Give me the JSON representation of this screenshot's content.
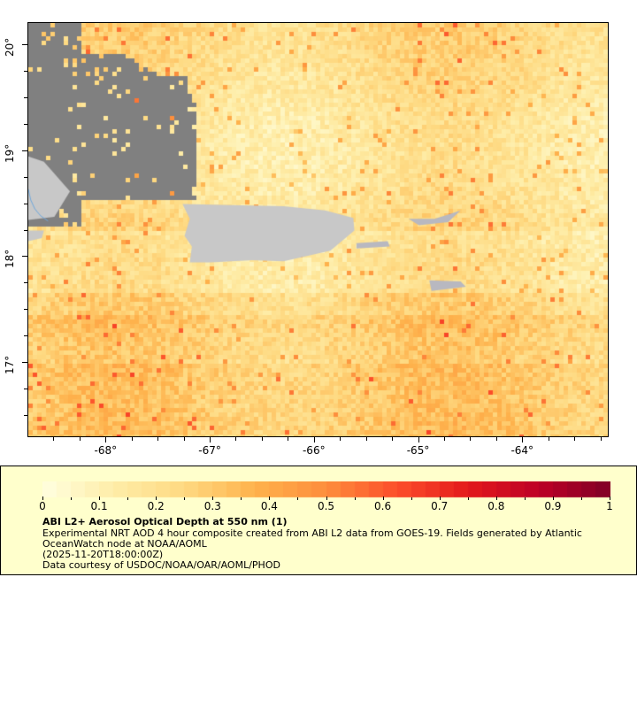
{
  "map": {
    "x_ticks": [
      {
        "value": -68,
        "label": "-68°"
      },
      {
        "value": -67,
        "label": "-67°"
      },
      {
        "value": -66,
        "label": "-66°"
      },
      {
        "value": -65,
        "label": "-65°"
      },
      {
        "value": -64,
        "label": "-64°"
      }
    ],
    "y_ticks": [
      {
        "value": 20,
        "label": "20°"
      },
      {
        "value": 19,
        "label": "19°"
      },
      {
        "value": 18,
        "label": "18°"
      },
      {
        "value": 17,
        "label": "17°"
      }
    ],
    "lon_range": [
      -68.75,
      -63.17
    ],
    "lat_range": [
      16.29,
      20.21
    ],
    "colors": {
      "land": "#c8c8c8",
      "no_data": "#808080",
      "river": "#6fa8dc"
    }
  },
  "legend": {
    "colorbar": {
      "min": 0,
      "max": 1,
      "labels": [
        "0",
        "0.1",
        "0.2",
        "0.3",
        "0.4",
        "0.5",
        "0.6",
        "0.7",
        "0.8",
        "0.9",
        "1"
      ],
      "colors": [
        "#ffffe0",
        "#feeda8",
        "#fed981",
        "#feb24c",
        "#fd8d3c",
        "#fc4e2a",
        "#e31a1c",
        "#bd0026",
        "#800026"
      ]
    },
    "title": "ABI L2+ Aerosol Optical Depth at 550 nm (1)",
    "line1": "Experimental NRT AOD 4 hour composite created from ABI L2 data from GOES-19. Fields generated by Atlantic",
    "line2": "OceanWatch node at NOAA/AOML",
    "line3": "(2025-11-20T18:00:00Z)",
    "line4": "Data courtesy of USDOC/NOAA/OAR/AOML/PHOD"
  }
}
